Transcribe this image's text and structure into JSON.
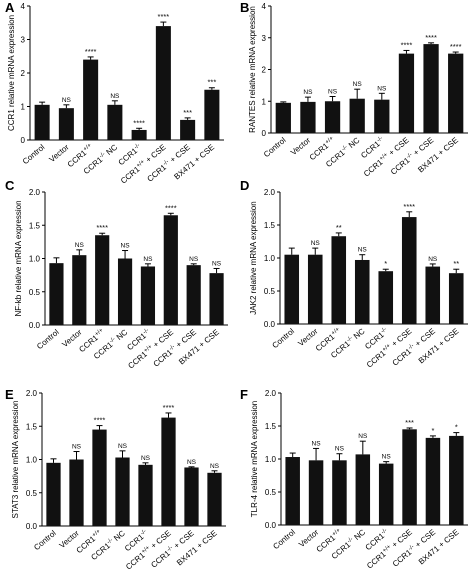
{
  "chart_data": [
    {
      "type": "bar",
      "panel": "A",
      "ylabel": "CCR1 relative mRNA expression",
      "categories": [
        "Control",
        "Vector",
        "CCR1+/+",
        "CCR1-/- NC",
        "CCR1-/-",
        "CCR1+/+ + CSE",
        "CCR1-/- + CSE",
        "BX471 + CSE"
      ],
      "values": [
        1.05,
        0.95,
        2.4,
        1.05,
        0.3,
        3.4,
        0.6,
        1.5
      ],
      "errors": [
        0.08,
        0.1,
        0.08,
        0.12,
        0.05,
        0.12,
        0.06,
        0.06
      ],
      "significance": [
        "",
        "NS",
        "****",
        "NS",
        "****",
        "****",
        "***",
        "***"
      ],
      "ylim": [
        0,
        4
      ],
      "yticks": [
        "0",
        "1",
        "2",
        "3",
        "4"
      ]
    },
    {
      "type": "bar",
      "panel": "B",
      "ylabel": "RANTES relative mRNA expression",
      "categories": [
        "Control",
        "Vector",
        "CCR1+/+",
        "CCR1-/- NC",
        "CCR1-/-",
        "CCR1+/+ + CSE",
        "CCR1-/- + CSE",
        "BX471 + CSE"
      ],
      "values": [
        0.95,
        0.98,
        1.0,
        1.08,
        1.05,
        2.5,
        2.8,
        2.5
      ],
      "errors": [
        0.03,
        0.15,
        0.15,
        0.3,
        0.2,
        0.1,
        0.04,
        0.05
      ],
      "significance": [
        "",
        "NS",
        "NS",
        "NS",
        "NS",
        "****",
        "****",
        "****"
      ],
      "ylim": [
        0,
        4
      ],
      "yticks": [
        "0",
        "1",
        "2",
        "3",
        "4"
      ]
    },
    {
      "type": "bar",
      "panel": "C",
      "ylabel": "NF-kb relative mRNA expression",
      "categories": [
        "Control",
        "Vector",
        "CCR1+/+",
        "CCR1-/- NC",
        "CCR1-/-",
        "CCR1+/+ + CSE",
        "CCR1-/- + CSE",
        "BX471 + CSE"
      ],
      "values": [
        0.93,
        1.05,
        1.35,
        1.0,
        0.88,
        1.65,
        0.9,
        0.78
      ],
      "errors": [
        0.08,
        0.08,
        0.03,
        0.12,
        0.04,
        0.03,
        0.02,
        0.07
      ],
      "significance": [
        "",
        "NS",
        "****",
        "NS",
        "NS",
        "****",
        "NS",
        "NS"
      ],
      "ylim": [
        0,
        2.0
      ],
      "yticks": [
        "0.0",
        "0.5",
        "1.0",
        "1.5",
        "2.0"
      ]
    },
    {
      "type": "bar",
      "panel": "D",
      "ylabel": "JAK2 relative mRNA expression",
      "categories": [
        "Control",
        "Vector",
        "CCR1+/+",
        "CCR1-/- NC",
        "CCR1-/-",
        "CCR1+/+ + CSE",
        "CCR1-/- + CSE",
        "BX471 + CSE"
      ],
      "values": [
        1.05,
        1.05,
        1.33,
        0.97,
        0.8,
        1.62,
        0.87,
        0.77
      ],
      "errors": [
        0.1,
        0.1,
        0.05,
        0.08,
        0.03,
        0.08,
        0.04,
        0.06
      ],
      "significance": [
        "",
        "NS",
        "**",
        "NS",
        "*",
        "****",
        "NS",
        "**"
      ],
      "ylim": [
        0,
        2.0
      ],
      "yticks": [
        "0.0",
        "0.5",
        "1.0",
        "1.5",
        "2.0"
      ]
    },
    {
      "type": "bar",
      "panel": "E",
      "ylabel": "STAT3 relative mRNA expression",
      "categories": [
        "Control",
        "Vector",
        "CCR1+/+",
        "CCR1-/- NC",
        "CCR1-/-",
        "CCR1+/+ + CSE",
        "CCR1-/- + CSE",
        "BX471 + CSE"
      ],
      "values": [
        0.95,
        1.0,
        1.45,
        1.03,
        0.92,
        1.63,
        0.88,
        0.8
      ],
      "errors": [
        0.06,
        0.12,
        0.06,
        0.1,
        0.03,
        0.07,
        0.01,
        0.03
      ],
      "significance": [
        "",
        "NS",
        "****",
        "NS",
        "NS",
        "****",
        "NS",
        "NS"
      ],
      "ylim": [
        0,
        2.0
      ],
      "yticks": [
        "0.0",
        "0.5",
        "1.0",
        "1.5",
        "2.0"
      ]
    },
    {
      "type": "bar",
      "panel": "F",
      "ylabel": "TLR-4 relative mRNA expression",
      "categories": [
        "Control",
        "Vector",
        "CCR1+/+",
        "CCR1-/- NC",
        "CCR1-/-",
        "CCR1+/+ + CSE",
        "CCR1-/- + CSE",
        "BX471 + CSE"
      ],
      "values": [
        1.03,
        0.98,
        0.98,
        1.07,
        0.93,
        1.45,
        1.32,
        1.35
      ],
      "errors": [
        0.06,
        0.18,
        0.1,
        0.2,
        0.03,
        0.02,
        0.03,
        0.05
      ],
      "significance": [
        "",
        "NS",
        "NS",
        "NS",
        "NS",
        "***",
        "*",
        "*"
      ],
      "ylim": [
        0,
        2.0
      ],
      "yticks": [
        "0.0",
        "0.5",
        "1.0",
        "1.5",
        "2.0"
      ]
    }
  ]
}
